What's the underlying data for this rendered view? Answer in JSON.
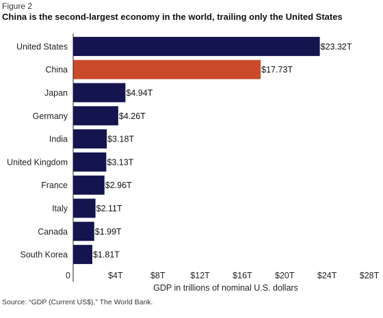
{
  "figure_label": "Figure 2",
  "source": "Source: “GDP (Current US$),” The World Bank.",
  "colors": {
    "default_bar": "#14154f",
    "highlight_bar": "#c94a2b",
    "axis": "#222222"
  },
  "chart_data": {
    "type": "bar",
    "orientation": "horizontal",
    "title": "China is the second-largest economy in the world, trailing only the United States",
    "xlabel": "GDP in trillions of nominal U.S. dollars",
    "ylabel": "",
    "categories": [
      "United States",
      "China",
      "Japan",
      "Germany",
      "India",
      "United Kingdom",
      "France",
      "Italy",
      "Canada",
      "South Korea"
    ],
    "values": [
      23.32,
      17.73,
      4.94,
      4.26,
      3.18,
      3.13,
      2.96,
      2.11,
      1.99,
      1.81
    ],
    "value_labels": [
      "$23.32T",
      "$17.73T",
      "$4.94T",
      "$4.26T",
      "$3.18T",
      "$3.13T",
      "$2.96T",
      "$2.11T",
      "$1.99T",
      "$1.81T"
    ],
    "highlight_category": "China",
    "xlim": [
      0,
      28
    ],
    "xticks": [
      0,
      4,
      8,
      12,
      16,
      20,
      24,
      28
    ],
    "xtick_labels": [
      "0",
      "$4T",
      "$8T",
      "$12T",
      "$16T",
      "$20T",
      "$24T",
      "$28T"
    ],
    "grid": false,
    "legend": "none"
  }
}
